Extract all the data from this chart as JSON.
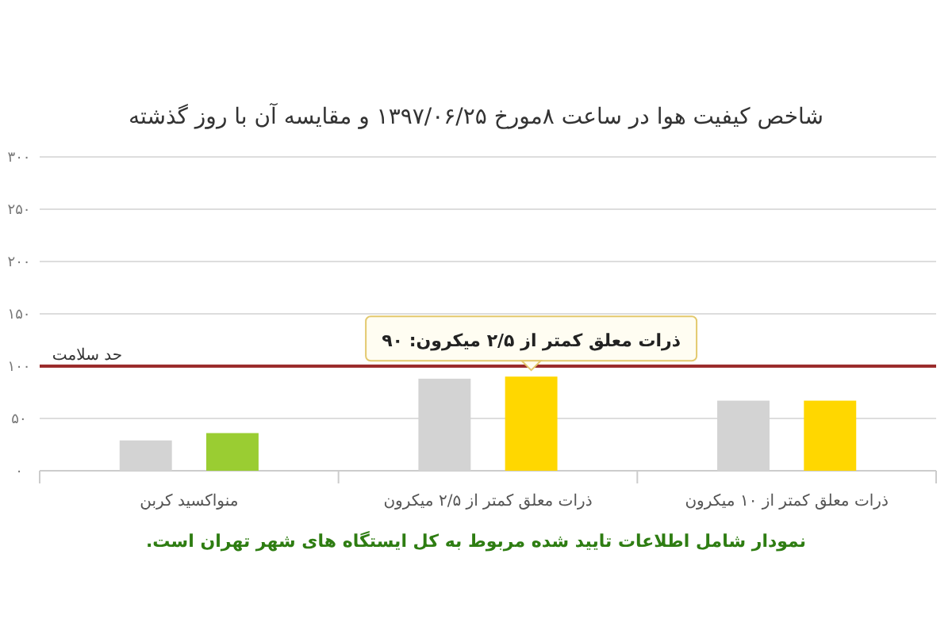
{
  "chart_data": {
    "type": "bar",
    "title": "شاخص کیفیت هوا در ساعت ۸مورخ ۱۳۹۷/۰۶/۲۵ و مقایسه آن با روز گذشته",
    "categories": [
      "منواکسید کربن",
      "ذرات معلق کمتر از ۲/۵ میکرون",
      "ذرات معلق کمتر از ۱۰ میکرون"
    ],
    "series": [
      {
        "color": "#d3d3d3",
        "values": [
          29,
          88,
          67
        ]
      },
      {
        "colors": [
          "#9acd32",
          "#ffd700",
          "#ffd700"
        ],
        "values": [
          36,
          90,
          67
        ]
      }
    ],
    "ylim": [
      0,
      300
    ],
    "yticks": [
      {
        "value": 0,
        "label": "۰"
      },
      {
        "value": 50,
        "label": "۵۰"
      },
      {
        "value": 100,
        "label": "۱۰۰"
      },
      {
        "value": 150,
        "label": "۱۵۰"
      },
      {
        "value": 200,
        "label": "۲۰۰"
      },
      {
        "value": 250,
        "label": "۲۵۰"
      },
      {
        "value": 300,
        "label": "۳۰۰"
      }
    ],
    "grid": "y",
    "ref_lines": [
      {
        "axis": "y",
        "value": 100,
        "label": "حد سلامت",
        "color": "#9b2c2c"
      }
    ],
    "annotations": [
      "ذرات معلق کمتر از ۲/۵ میکرون: ۹۰",
      "نمودار شامل اطلاعات تایید شده مربوط به کل ایستگاه های شهر تهران است."
    ]
  }
}
